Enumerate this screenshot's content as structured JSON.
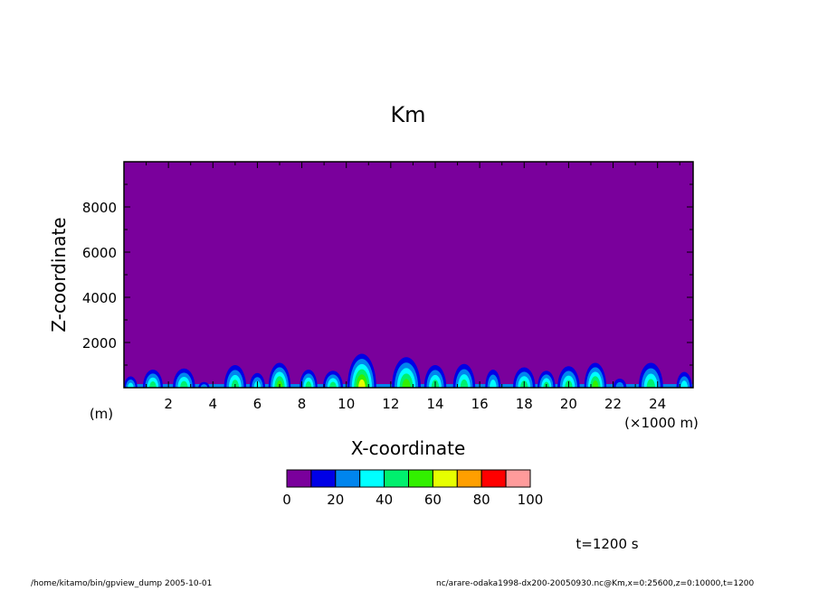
{
  "chart_data": {
    "type": "heatmap",
    "title": "Km",
    "xlabel": "X-coordinate",
    "ylabel": "Z-coordinate",
    "x_unit_left": "(m)",
    "x_unit_right": "(×1000 m)",
    "xlim": [
      0,
      25.6
    ],
    "ylim": [
      0,
      10000
    ],
    "x_ticks": [
      2,
      4,
      6,
      8,
      10,
      12,
      14,
      16,
      18,
      20,
      22,
      24
    ],
    "y_ticks": [
      2000,
      4000,
      6000,
      8000
    ],
    "colorbar": {
      "levels": [
        0,
        10,
        20,
        30,
        40,
        50,
        60,
        70,
        80,
        90,
        100
      ],
      "labels": [
        0,
        20,
        40,
        60,
        80,
        100
      ],
      "colors": [
        "#7a009c",
        "#0000e6",
        "#0085ee",
        "#00ffff",
        "#00f06e",
        "#32f000",
        "#e6ff00",
        "#ff9f00",
        "#ff0000",
        "#ff9b9b"
      ]
    },
    "background_level_color": "#7a009c",
    "plumes": [
      {
        "x": 0.3,
        "top": 500,
        "width": 0.6,
        "max_level": 3
      },
      {
        "x": 1.3,
        "top": 800,
        "width": 0.9,
        "max_level": 4
      },
      {
        "x": 2.7,
        "top": 850,
        "width": 1.0,
        "max_level": 4
      },
      {
        "x": 3.6,
        "top": 250,
        "width": 0.5,
        "max_level": 2
      },
      {
        "x": 5.0,
        "top": 1000,
        "width": 1.0,
        "max_level": 4
      },
      {
        "x": 6.0,
        "top": 650,
        "width": 0.7,
        "max_level": 3
      },
      {
        "x": 7.0,
        "top": 1100,
        "width": 1.0,
        "max_level": 5
      },
      {
        "x": 8.3,
        "top": 800,
        "width": 0.8,
        "max_level": 4
      },
      {
        "x": 9.4,
        "top": 750,
        "width": 0.9,
        "max_level": 4
      },
      {
        "x": 10.7,
        "top": 1500,
        "width": 1.3,
        "max_level": 6
      },
      {
        "x": 12.7,
        "top": 1350,
        "width": 1.3,
        "max_level": 5
      },
      {
        "x": 14.0,
        "top": 1000,
        "width": 1.0,
        "max_level": 4
      },
      {
        "x": 15.3,
        "top": 1050,
        "width": 1.0,
        "max_level": 4
      },
      {
        "x": 16.6,
        "top": 800,
        "width": 0.7,
        "max_level": 3
      },
      {
        "x": 18.0,
        "top": 900,
        "width": 1.0,
        "max_level": 4
      },
      {
        "x": 19.0,
        "top": 750,
        "width": 0.8,
        "max_level": 4
      },
      {
        "x": 20.0,
        "top": 950,
        "width": 1.0,
        "max_level": 4
      },
      {
        "x": 21.2,
        "top": 1100,
        "width": 1.0,
        "max_level": 5
      },
      {
        "x": 22.3,
        "top": 400,
        "width": 0.6,
        "max_level": 2
      },
      {
        "x": 23.7,
        "top": 1100,
        "width": 1.1,
        "max_level": 4
      },
      {
        "x": 25.2,
        "top": 700,
        "width": 0.7,
        "max_level": 3
      }
    ]
  },
  "time_label": "t=1200 s",
  "footer_left": "/home/kitamo/bin/gpview_dump  2005-10-01",
  "footer_right": "nc/arare-odaka1998-dx200-20050930.nc@Km,x=0:25600,z=0:10000,t=1200"
}
